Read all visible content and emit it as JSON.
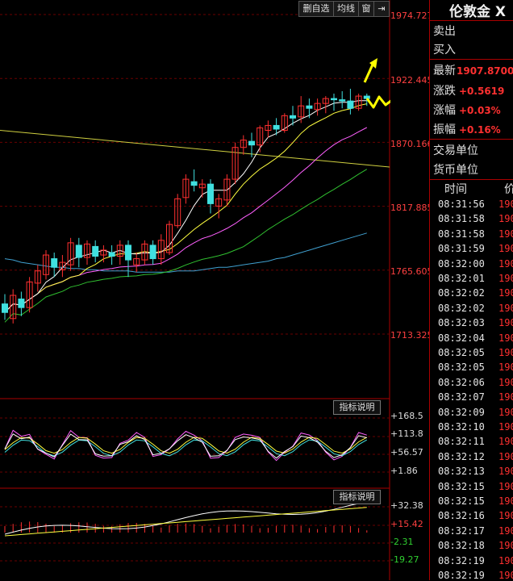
{
  "toolbar": {
    "delete_watch": "删自选",
    "ma_line": "均线",
    "window": "窗",
    "arrow_icon": "arrow-right-bar-icon"
  },
  "axis": {
    "main": [
      "1974.727",
      "1922.445",
      "1870.166",
      "1817.885",
      "1765.605",
      "1713.325"
    ],
    "ind1": [
      "+168.5",
      "+113.8",
      "+56.57",
      "+1.86"
    ],
    "ind2": [
      "+32.38",
      "+15.42",
      "-2.31",
      "-19.27"
    ]
  },
  "indicator_labels": [
    "指标说明",
    "指标说明"
  ],
  "quote": {
    "title": "伦敦金 X",
    "sell": "卖出",
    "buy": "买入",
    "latest_label": "最新",
    "latest_value": "1907.8700",
    "change_label": "涨跌",
    "change_value": "+0.5619",
    "pct_label": "涨幅",
    "pct_value": "+0.03%",
    "amp_label": "振幅",
    "amp_value": "+0.16%",
    "trade_unit": "交易单位",
    "currency_unit": "货币单位"
  },
  "ticks": {
    "header_time": "时间",
    "header_price": "价",
    "rows": [
      {
        "time": "08:31:56",
        "price": "190"
      },
      {
        "time": "08:31:58",
        "price": "190"
      },
      {
        "time": "08:31:58",
        "price": "190"
      },
      {
        "time": "08:31:59",
        "price": "190"
      },
      {
        "time": "08:32:00",
        "price": "190"
      },
      {
        "time": "08:32:01",
        "price": "190"
      },
      {
        "time": "08:32:02",
        "price": "190"
      },
      {
        "time": "08:32:02",
        "price": "190"
      },
      {
        "time": "08:32:03",
        "price": "190"
      },
      {
        "time": "08:32:04",
        "price": "190"
      },
      {
        "time": "08:32:05",
        "price": "190"
      },
      {
        "time": "08:32:05",
        "price": "190"
      },
      {
        "time": "08:32:06",
        "price": "190"
      },
      {
        "time": "08:32:07",
        "price": "190"
      },
      {
        "time": "08:32:09",
        "price": "190"
      },
      {
        "time": "08:32:10",
        "price": "190"
      },
      {
        "time": "08:32:11",
        "price": "190"
      },
      {
        "time": "08:32:12",
        "price": "190"
      },
      {
        "time": "08:32:13",
        "price": "190"
      },
      {
        "time": "08:32:15",
        "price": "190"
      },
      {
        "time": "08:32:15",
        "price": "190"
      },
      {
        "time": "08:32:16",
        "price": "190"
      },
      {
        "time": "08:32:17",
        "price": "190"
      },
      {
        "time": "08:32:18",
        "price": "190"
      },
      {
        "time": "08:32:19",
        "price": "190"
      },
      {
        "time": "08:32:19",
        "price": "190"
      }
    ]
  },
  "colors": {
    "up": "#ff3030",
    "down": "#40e0e0",
    "ma5": "#ffffff",
    "ma10": "#ffff40",
    "ma20": "#ff60ff",
    "ma30": "#30c030",
    "ma60": "#40a0d0",
    "arrow": "#ffff00",
    "trend": "#d0d040"
  },
  "chart_data": {
    "type": "candlestick",
    "ylim": [
      1713.325,
      1974.727
    ],
    "candles": [
      {
        "o": 1738,
        "h": 1746,
        "l": 1725,
        "c": 1731
      },
      {
        "o": 1726,
        "h": 1750,
        "l": 1722,
        "c": 1745
      },
      {
        "o": 1742,
        "h": 1748,
        "l": 1728,
        "c": 1735
      },
      {
        "o": 1735,
        "h": 1760,
        "l": 1731,
        "c": 1756
      },
      {
        "o": 1755,
        "h": 1770,
        "l": 1748,
        "c": 1765
      },
      {
        "o": 1762,
        "h": 1782,
        "l": 1758,
        "c": 1778
      },
      {
        "o": 1775,
        "h": 1780,
        "l": 1760,
        "c": 1768
      },
      {
        "o": 1766,
        "h": 1778,
        "l": 1760,
        "c": 1772
      },
      {
        "o": 1770,
        "h": 1792,
        "l": 1765,
        "c": 1788
      },
      {
        "o": 1786,
        "h": 1792,
        "l": 1768,
        "c": 1776
      },
      {
        "o": 1776,
        "h": 1790,
        "l": 1770,
        "c": 1787
      },
      {
        "o": 1785,
        "h": 1790,
        "l": 1772,
        "c": 1777
      },
      {
        "o": 1778,
        "h": 1786,
        "l": 1772,
        "c": 1782
      },
      {
        "o": 1780,
        "h": 1786,
        "l": 1770,
        "c": 1777
      },
      {
        "o": 1777,
        "h": 1790,
        "l": 1770,
        "c": 1786
      },
      {
        "o": 1786,
        "h": 1790,
        "l": 1760,
        "c": 1774
      },
      {
        "o": 1770,
        "h": 1780,
        "l": 1764,
        "c": 1775
      },
      {
        "o": 1774,
        "h": 1790,
        "l": 1770,
        "c": 1787
      },
      {
        "o": 1786,
        "h": 1790,
        "l": 1770,
        "c": 1775
      },
      {
        "o": 1775,
        "h": 1795,
        "l": 1770,
        "c": 1790
      },
      {
        "o": 1780,
        "h": 1806,
        "l": 1778,
        "c": 1803
      },
      {
        "o": 1802,
        "h": 1828,
        "l": 1800,
        "c": 1824
      },
      {
        "o": 1825,
        "h": 1844,
        "l": 1820,
        "c": 1840
      },
      {
        "o": 1838,
        "h": 1848,
        "l": 1830,
        "c": 1835
      },
      {
        "o": 1833,
        "h": 1840,
        "l": 1825,
        "c": 1836
      },
      {
        "o": 1836,
        "h": 1840,
        "l": 1812,
        "c": 1820
      },
      {
        "o": 1818,
        "h": 1828,
        "l": 1808,
        "c": 1824
      },
      {
        "o": 1823,
        "h": 1844,
        "l": 1818,
        "c": 1840
      },
      {
        "o": 1840,
        "h": 1870,
        "l": 1836,
        "c": 1866
      },
      {
        "o": 1866,
        "h": 1876,
        "l": 1860,
        "c": 1872
      },
      {
        "o": 1871,
        "h": 1878,
        "l": 1858,
        "c": 1868
      },
      {
        "o": 1868,
        "h": 1884,
        "l": 1862,
        "c": 1882
      },
      {
        "o": 1880,
        "h": 1888,
        "l": 1874,
        "c": 1884
      },
      {
        "o": 1884,
        "h": 1890,
        "l": 1876,
        "c": 1881
      },
      {
        "o": 1880,
        "h": 1894,
        "l": 1878,
        "c": 1892
      },
      {
        "o": 1892,
        "h": 1900,
        "l": 1884,
        "c": 1890
      },
      {
        "o": 1891,
        "h": 1908,
        "l": 1886,
        "c": 1900
      },
      {
        "o": 1900,
        "h": 1906,
        "l": 1890,
        "c": 1898
      },
      {
        "o": 1897,
        "h": 1906,
        "l": 1892,
        "c": 1902
      },
      {
        "o": 1902,
        "h": 1908,
        "l": 1894,
        "c": 1906
      },
      {
        "o": 1906,
        "h": 1910,
        "l": 1896,
        "c": 1905
      },
      {
        "o": 1905,
        "h": 1912,
        "l": 1898,
        "c": 1904
      },
      {
        "o": 1904,
        "h": 1914,
        "l": 1893,
        "c": 1898
      },
      {
        "o": 1898,
        "h": 1910,
        "l": 1896,
        "c": 1908
      },
      {
        "o": 1908,
        "h": 1910,
        "l": 1900,
        "c": 1906
      }
    ],
    "ma60": [
      1775,
      1774,
      1772,
      1771,
      1770,
      1769,
      1768,
      1768,
      1767,
      1767,
      1766,
      1766,
      1765,
      1765,
      1765,
      1765,
      1764,
      1764,
      1764,
      1764,
      1764,
      1765,
      1765,
      1765,
      1766,
      1767,
      1768,
      1768,
      1769,
      1770,
      1771,
      1772,
      1773,
      1775,
      1776,
      1778,
      1780,
      1782,
      1784,
      1786,
      1788,
      1790,
      1792,
      1794,
      1796
    ],
    "trend_line": [
      {
        "i": 0,
        "v": 1880
      },
      {
        "i": 44,
        "v": 1850
      }
    ]
  }
}
